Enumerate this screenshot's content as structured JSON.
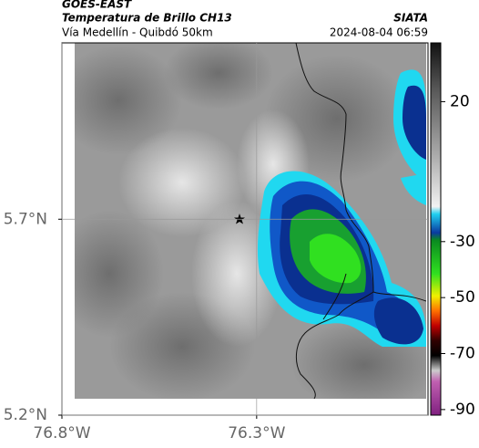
{
  "header": {
    "satellite": "GOES-EAST",
    "product": "Temperatura de Brillo CH13",
    "route": "Vía Medellín - Quibdó 50km",
    "source": "SIATA",
    "timestamp": "2024-08-04 06:59"
  },
  "map": {
    "xlim": [
      -76.8,
      -75.86
    ],
    "ylim": [
      5.2,
      6.15
    ],
    "grid": true,
    "xticks": [
      {
        "value": -76.8,
        "label": "76.8°W"
      },
      {
        "value": -76.3,
        "label": "76.3°W"
      }
    ],
    "yticks": [
      {
        "value": 5.2,
        "label": "5.2°N"
      },
      {
        "value": 5.7,
        "label": "5.7°N"
      }
    ]
  },
  "colorbar": {
    "lim": [
      -92,
      41
    ],
    "ticks": [
      20,
      -30,
      -50,
      -70,
      -90
    ]
  }
}
